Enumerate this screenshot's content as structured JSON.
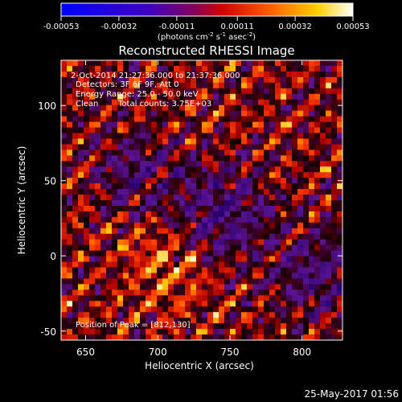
{
  "chart_data": {
    "type": "heatmap",
    "title": "Reconstructed RHESSI Image",
    "xlabel": "Heliocentric X (arcsec)",
    "ylabel": "Heliocentric Y (arcsec)",
    "xlim": [
      633,
      828
    ],
    "ylim": [
      -56,
      130
    ],
    "x_ticks": [
      650,
      700,
      750,
      800
    ],
    "y_ticks": [
      -50,
      0,
      50,
      100
    ],
    "colorbar": {
      "range": [
        -0.00053,
        0.00053
      ],
      "tick_values": [
        -0.00053,
        -0.00032,
        -0.00011,
        0.00011,
        0.00032,
        0.00053
      ],
      "tick_labels": [
        "-0.00053",
        "-0.00032",
        "-0.00011",
        "0.00011",
        "0.00032",
        "0.00053"
      ],
      "unit": {
        "open": "(photons cm",
        "exp1": "-2",
        "mid1": " s",
        "exp2": "-1",
        "mid2": " asec",
        "exp3": "-2",
        "close": ")"
      }
    },
    "annotations": {
      "time_range": "2-Oct-2014 21:27:36.000 to 21:37:36.000",
      "detectors": "Detectors: 3F 6F 9F, Att 0",
      "energy_range": "Energy Range: 25.0 - 50.0 keV",
      "method": "Clean",
      "counts": "Total counts: 3.75E+03",
      "peak": "Position of Peak = [812,130]"
    },
    "peak_position": [
      812,
      130
    ],
    "grid": false,
    "legend": "none"
  },
  "footer": {
    "timestamp": "25-May-2017 01:56"
  }
}
